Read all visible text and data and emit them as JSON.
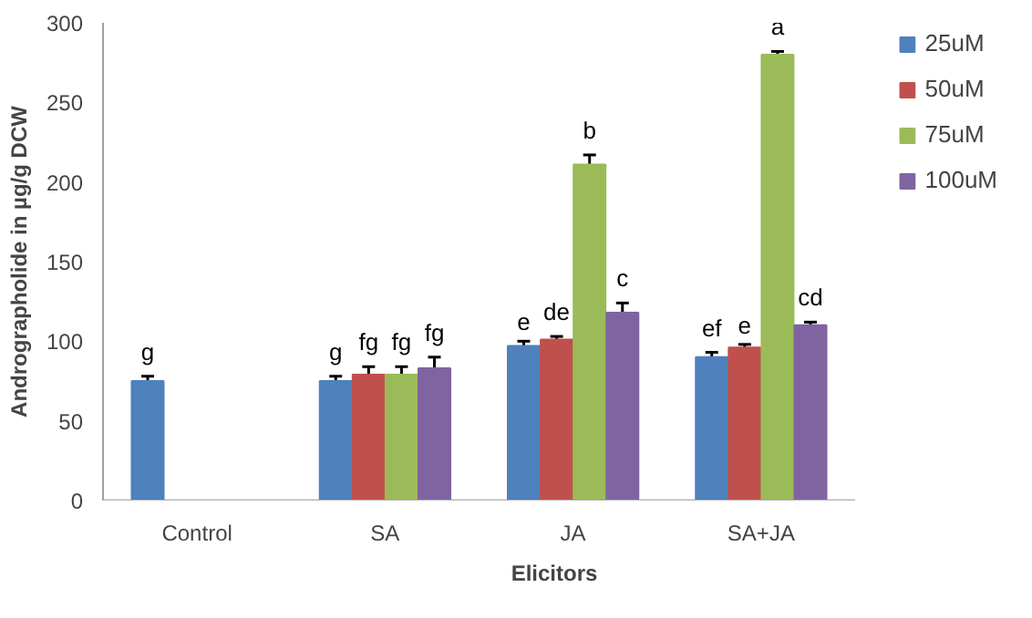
{
  "chart_data": {
    "type": "bar",
    "xlabel": "Elicitors",
    "ylabel": "Andrographolide in µg/g DCW",
    "categories": [
      "Control",
      "SA",
      "JA",
      "SA+JA"
    ],
    "series": [
      {
        "name": "25uM",
        "color": "#4f81bd",
        "values": [
          75,
          75,
          97,
          90
        ],
        "errors": [
          3,
          3,
          3,
          3
        ],
        "value_labels": [
          "g",
          "g",
          "e",
          "ef"
        ]
      },
      {
        "name": "50uM",
        "color": "#c0504d",
        "values": [
          0,
          79,
          101,
          96
        ],
        "errors": [
          null,
          5,
          2,
          2
        ],
        "value_labels": [
          null,
          "fg",
          "de",
          "e"
        ]
      },
      {
        "name": "75uM",
        "color": "#9bbb59",
        "values": [
          0,
          79,
          211,
          280
        ],
        "errors": [
          null,
          5,
          6,
          2
        ],
        "value_labels": [
          null,
          "fg",
          "b",
          "a"
        ]
      },
      {
        "name": "100uM",
        "color": "#8064a2",
        "values": [
          0,
          83,
          118,
          110
        ],
        "errors": [
          null,
          7,
          6,
          2
        ],
        "value_labels": [
          null,
          "fg",
          "c",
          "cd"
        ]
      }
    ],
    "ylim": [
      0,
      300
    ],
    "yticks": [
      0,
      50,
      100,
      150,
      200,
      250,
      300
    ],
    "grid": false,
    "legend": "right"
  }
}
